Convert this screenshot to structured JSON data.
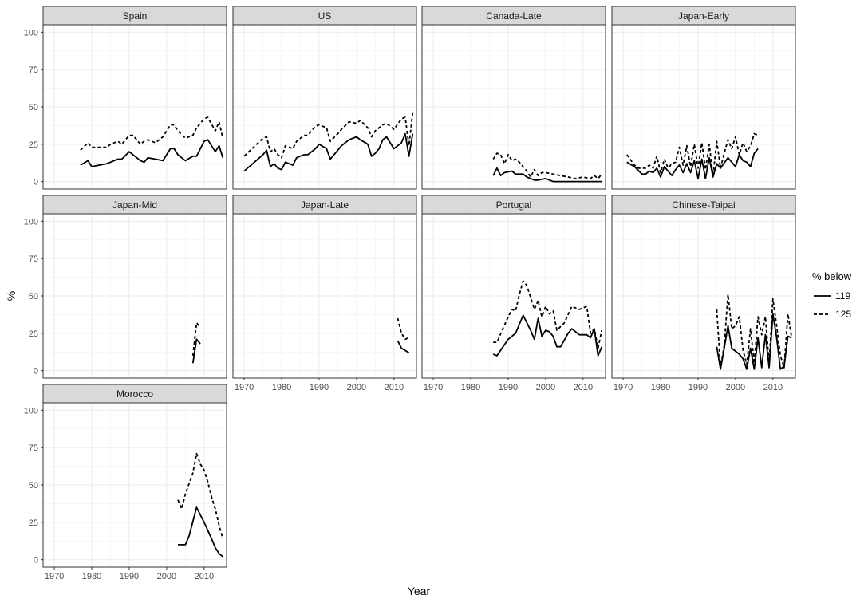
{
  "chart_data": {
    "type": "line",
    "facet_layout": "4 columns, 3 rows",
    "xlabel": "Year",
    "ylabel": "%",
    "xlim": [
      1967,
      2016
    ],
    "ylim": [
      -5,
      105
    ],
    "x_ticks": [
      1970,
      1980,
      1990,
      2000,
      2010
    ],
    "y_ticks": [
      0,
      25,
      50,
      75,
      100
    ],
    "grid": true,
    "legend": {
      "title": "% below",
      "position": "right",
      "entries": [
        {
          "label": "119",
          "linetype": "solid"
        },
        {
          "label": "125",
          "linetype": "dashed"
        }
      ]
    },
    "panels": [
      {
        "name": "Spain",
        "series": [
          {
            "name": "119",
            "x": [
              1977,
              1979,
              1980,
              1982,
              1984,
              1985,
              1987,
              1988,
              1990,
              1991,
              1993,
              1994,
              1995,
              1997,
              1999,
              2001,
              2002,
              2003,
              2005,
              2007,
              2008,
              2010,
              2011,
              2013,
              2014,
              2015
            ],
            "y": [
              11,
              14,
              10,
              11,
              12,
              13,
              15,
              15,
              20,
              18,
              14,
              13,
              16,
              15,
              14,
              22,
              22,
              18,
              14,
              17,
              17,
              27,
              28,
              20,
              24,
              16
            ]
          },
          {
            "name": "125",
            "x": [
              1977,
              1979,
              1980,
              1982,
              1984,
              1985,
              1987,
              1988,
              1990,
              1991,
              1993,
              1994,
              1995,
              1997,
              1999,
              2001,
              2002,
              2003,
              2005,
              2007,
              2008,
              2010,
              2011,
              2013,
              2014,
              2015
            ],
            "y": [
              21,
              26,
              23,
              23,
              23,
              25,
              27,
              25,
              31,
              31,
              25,
              27,
              28,
              26,
              30,
              38,
              38,
              34,
              29,
              31,
              36,
              42,
              43,
              34,
              40,
              29
            ]
          }
        ]
      },
      {
        "name": "US",
        "series": [
          {
            "name": "119",
            "x": [
              1970,
              1975,
              1976,
              1977,
              1978,
              1979,
              1980,
              1981,
              1983,
              1984,
              1986,
              1987,
              1989,
              1990,
              1992,
              1993,
              1995,
              1996,
              1998,
              2000,
              2001,
              2003,
              2004,
              2005,
              2006,
              2007,
              2008,
              2010,
              2012,
              2013,
              2014,
              2015
            ],
            "y": [
              7,
              18,
              21,
              10,
              12,
              9,
              8,
              13,
              11,
              16,
              18,
              18,
              22,
              25,
              22,
              15,
              21,
              24,
              28,
              30,
              28,
              25,
              17,
              19,
              22,
              28,
              30,
              22,
              26,
              32,
              17,
              32
            ]
          },
          {
            "name": "125",
            "x": [
              1970,
              1975,
              1976,
              1977,
              1978,
              1979,
              1980,
              1981,
              1983,
              1984,
              1986,
              1987,
              1989,
              1990,
              1992,
              1993,
              1995,
              1996,
              1998,
              2000,
              2001,
              2003,
              2004,
              2005,
              2006,
              2007,
              2008,
              2010,
              2012,
              2013,
              2014,
              2015
            ],
            "y": [
              17,
              29,
              30,
              20,
              22,
              18,
              16,
              24,
              22,
              27,
              31,
              31,
              37,
              38,
              36,
              27,
              32,
              35,
              40,
              39,
              41,
              36,
              30,
              34,
              36,
              38,
              39,
              35,
              42,
              43,
              24,
              46
            ]
          }
        ]
      },
      {
        "name": "Canada-Late",
        "series": [
          {
            "name": "119",
            "x": [
              1986,
              1987,
              1988,
              1989,
              1991,
              1992,
              1994,
              1995,
              1996,
              1997,
              1998,
              2000,
              2002,
              2005,
              2010,
              2014,
              2015
            ],
            "y": [
              4,
              9,
              4,
              6,
              7,
              5,
              5,
              3,
              2,
              1,
              1,
              2,
              0,
              0,
              0,
              0,
              0
            ]
          },
          {
            "name": "125",
            "x": [
              1986,
              1987,
              1988,
              1989,
              1990,
              1991,
              1992,
              1993,
              1994,
              1995,
              1996,
              1997,
              1998,
              1999,
              2000,
              2002,
              2004,
              2006,
              2008,
              2010,
              2012,
              2013,
              2014,
              2015
            ],
            "y": [
              15,
              19,
              18,
              12,
              18,
              14,
              15,
              13,
              10,
              7,
              3,
              8,
              4,
              6,
              6,
              5,
              4,
              3,
              2,
              3,
              2,
              4,
              2,
              5
            ]
          }
        ]
      },
      {
        "name": "Japan-Early",
        "series": [
          {
            "name": "119",
            "x": [
              1971,
              1973,
              1975,
              1976,
              1977,
              1978,
              1979,
              1980,
              1981,
              1983,
              1984,
              1985,
              1986,
              1987,
              1988,
              1989,
              1990,
              1991,
              1992,
              1993,
              1994,
              1995,
              1996,
              1998,
              2000,
              2001,
              2002,
              2003,
              2004,
              2005,
              2006
            ],
            "y": [
              13,
              10,
              5,
              5,
              7,
              6,
              9,
              3,
              10,
              4,
              8,
              11,
              6,
              12,
              6,
              14,
              2,
              15,
              2,
              16,
              3,
              12,
              9,
              16,
              10,
              18,
              14,
              13,
              10,
              19,
              22
            ]
          },
          {
            "name": "125",
            "x": [
              1971,
              1973,
              1974,
              1976,
              1977,
              1978,
              1979,
              1980,
              1981,
              1982,
              1983,
              1984,
              1985,
              1986,
              1987,
              1988,
              1989,
              1990,
              1991,
              1992,
              1993,
              1994,
              1995,
              1996,
              1997,
              1998,
              1999,
              2000,
              2001,
              2002,
              2003,
              2004,
              2005,
              2006
            ],
            "y": [
              18,
              11,
              9,
              9,
              11,
              9,
              17,
              6,
              15,
              9,
              12,
              13,
              23,
              11,
              24,
              10,
              25,
              9,
              26,
              8,
              25,
              4,
              27,
              9,
              19,
              28,
              22,
              30,
              18,
              26,
              20,
              24,
              32,
              31
            ]
          }
        ]
      },
      {
        "name": "Japan-Mid",
        "series": [
          {
            "name": "119",
            "x": [
              2007,
              2008,
              2009
            ],
            "y": [
              5,
              21,
              18
            ]
          },
          {
            "name": "125",
            "x": [
              2007,
              2008,
              2009
            ],
            "y": [
              10,
              32,
              29
            ]
          }
        ]
      },
      {
        "name": "Japan-Late",
        "series": [
          {
            "name": "119",
            "x": [
              2011,
              2012,
              2014
            ],
            "y": [
              20,
              15,
              12
            ]
          },
          {
            "name": "125",
            "x": [
              2011,
              2012,
              2013,
              2014
            ],
            "y": [
              35,
              25,
              21,
              22
            ]
          }
        ]
      },
      {
        "name": "Portugal",
        "series": [
          {
            "name": "119",
            "x": [
              1986,
              1987,
              1990,
              1992,
              1994,
              1996,
              1997,
              1998,
              1999,
              2000,
              2001,
              2002,
              2003,
              2004,
              2006,
              2007,
              2009,
              2011,
              2012,
              2013,
              2014,
              2015
            ],
            "y": [
              11,
              10,
              21,
              25,
              37,
              27,
              21,
              35,
              23,
              27,
              26,
              23,
              16,
              16,
              25,
              28,
              24,
              24,
              22,
              28,
              10,
              16
            ]
          },
          {
            "name": "125",
            "x": [
              1986,
              1987,
              1990,
              1991,
              1992,
              1993,
              1994,
              1995,
              1996,
              1997,
              1998,
              1999,
              2000,
              2001,
              2002,
              2003,
              2005,
              2007,
              2009,
              2011,
              2012,
              2013,
              2014,
              2015
            ],
            "y": [
              19,
              19,
              36,
              41,
              40,
              51,
              60,
              57,
              49,
              41,
              47,
              36,
              43,
              38,
              40,
              27,
              32,
              43,
              41,
              43,
              25,
              28,
              15,
              27
            ]
          }
        ]
      },
      {
        "name": "Chinese-Taipai",
        "series": [
          {
            "name": "119",
            "x": [
              1995,
              1996,
              1997,
              1998,
              1999,
              2001,
              2002,
              2003,
              2004,
              2005,
              2006,
              2007,
              2008,
              2009,
              2010,
              2011,
              2012,
              2013,
              2014,
              2015
            ],
            "y": [
              16,
              1,
              15,
              30,
              15,
              11,
              8,
              1,
              15,
              1,
              22,
              2,
              24,
              2,
              38,
              22,
              1,
              3,
              23,
              22
            ]
          },
          {
            "name": "125",
            "x": [
              1995,
              1996,
              1997,
              1998,
              1999,
              2000,
              2001,
              2002,
              2003,
              2004,
              2005,
              2006,
              2007,
              2008,
              2009,
              2010,
              2011,
              2012,
              2013,
              2014,
              2015
            ],
            "y": [
              41,
              2,
              17,
              51,
              28,
              30,
              36,
              14,
              4,
              28,
              5,
              36,
              24,
              36,
              5,
              48,
              30,
              10,
              2,
              38,
              22
            ]
          }
        ]
      },
      {
        "name": "Morocco",
        "series": [
          {
            "name": "119",
            "x": [
              2003,
              2005,
              2006,
              2008,
              2010,
              2012,
              2013,
              2014,
              2015
            ],
            "y": [
              10,
              10,
              16,
              35,
              25,
              14,
              8,
              4,
              2
            ]
          },
          {
            "name": "125",
            "x": [
              2003,
              2004,
              2005,
              2006,
              2007,
              2008,
              2009,
              2010,
              2011,
              2012,
              2013,
              2014,
              2015
            ],
            "y": [
              40,
              34,
              44,
              51,
              58,
              71,
              64,
              60,
              52,
              42,
              34,
              23,
              14
            ]
          }
        ]
      }
    ]
  }
}
